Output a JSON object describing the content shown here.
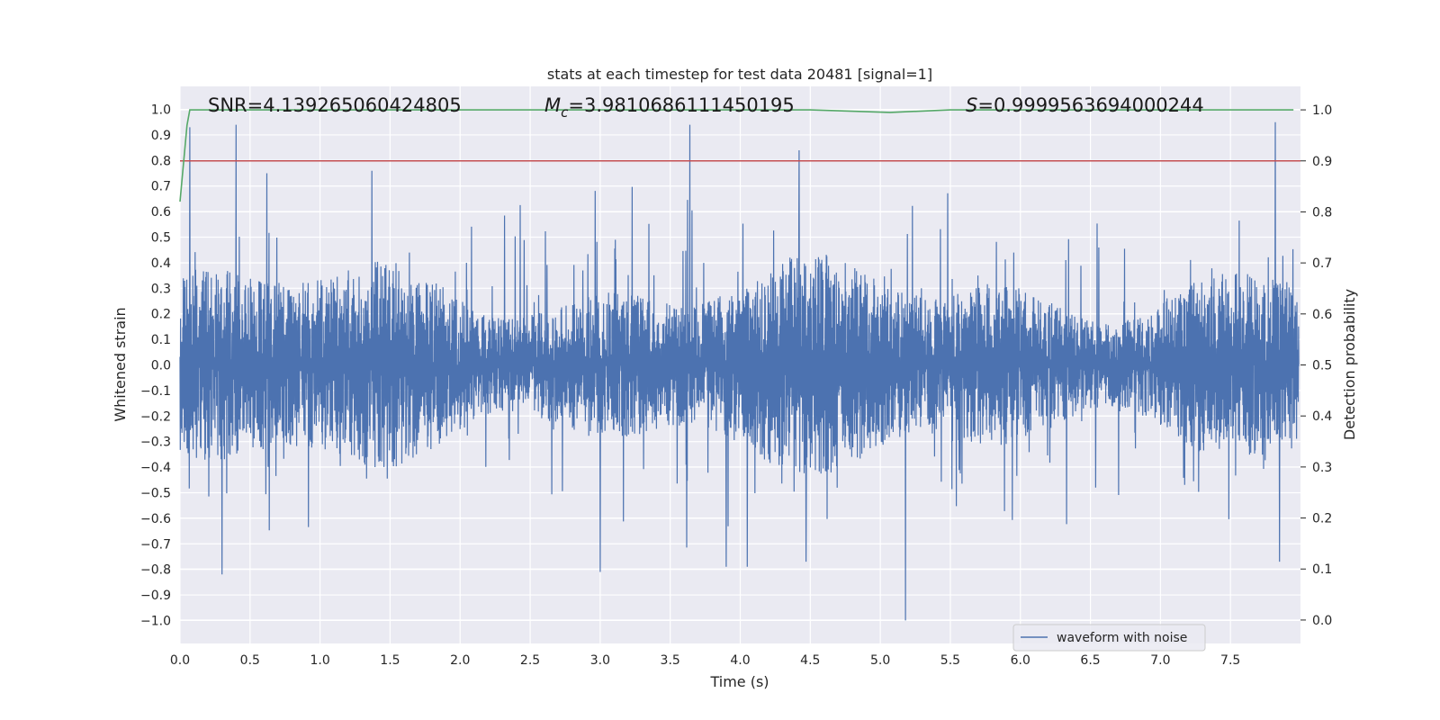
{
  "chart_data": {
    "type": "line",
    "title": "stats at each timestep for test data 20481 [signal=1]",
    "xlabel": "Time (s)",
    "ylabel": "Whitened strain",
    "y2label": "Detection probability",
    "xlim": [
      0.0,
      8.0
    ],
    "ylim": [
      -1.09,
      1.09
    ],
    "y2lim": [
      -0.046,
      1.046
    ],
    "x_ticks": [
      "0.0",
      "0.5",
      "1.0",
      "1.5",
      "2.0",
      "2.5",
      "3.0",
      "3.5",
      "4.0",
      "4.5",
      "5.0",
      "5.5",
      "6.0",
      "6.5",
      "7.0",
      "7.5"
    ],
    "y_ticks": [
      "1.0",
      "0.9",
      "0.8",
      "0.7",
      "0.6",
      "0.5",
      "0.4",
      "0.3",
      "0.2",
      "0.1",
      "0.0",
      "−0.1",
      "−0.2",
      "−0.3",
      "−0.4",
      "−0.5",
      "−0.6",
      "−0.7",
      "−0.8",
      "−0.9",
      "−1.0"
    ],
    "y2_ticks": [
      "1.0",
      "0.9",
      "0.8",
      "0.7",
      "0.6",
      "0.5",
      "0.4",
      "0.3",
      "0.2",
      "0.1",
      "0.0"
    ],
    "grid": true,
    "legend_position": "bottom-right",
    "annotations": {
      "snr": "SNR=4.139265060424805",
      "mc_symbol": "M",
      "mc_sub": "c",
      "mc_value": "=3.9810686111450195",
      "s_symbol": "S",
      "s_value": "=0.9999563694000244"
    },
    "series": [
      {
        "name": "waveform with noise",
        "axis": "left",
        "color": "#4c72b0",
        "description_peaks": {
          "x": [
            0.07,
            0.3,
            0.4,
            0.62,
            1.37,
            3.0,
            3.64,
            3.9,
            4.05,
            4.42,
            4.47,
            5.18,
            7.82,
            7.85
          ],
          "y": [
            0.93,
            -0.82,
            0.94,
            0.75,
            0.76,
            -0.81,
            0.94,
            -0.79,
            -0.79,
            0.84,
            -0.77,
            -1.0,
            0.95,
            -0.77
          ]
        }
      },
      {
        "axis": "right",
        "color": "#55a868",
        "x": [
          0.0,
          0.05,
          0.07,
          0.1,
          1.0,
          3.0,
          4.5,
          5.07,
          5.5,
          7.0,
          7.95
        ],
        "y": [
          0.82,
          0.97,
          1.0,
          1.0,
          1.0,
          1.0,
          1.0,
          0.995,
          1.0,
          1.0,
          1.0
        ]
      },
      {
        "axis": "right",
        "color": "#c44e52",
        "x": [
          0.0,
          8.0
        ],
        "y": [
          0.9,
          0.9
        ]
      }
    ]
  },
  "colors": {
    "plot_background": "#eaeaf2",
    "grid": "#ffffff",
    "waveform": "#4c72b0",
    "probability": "#55a868",
    "threshold": "#c44e52"
  }
}
